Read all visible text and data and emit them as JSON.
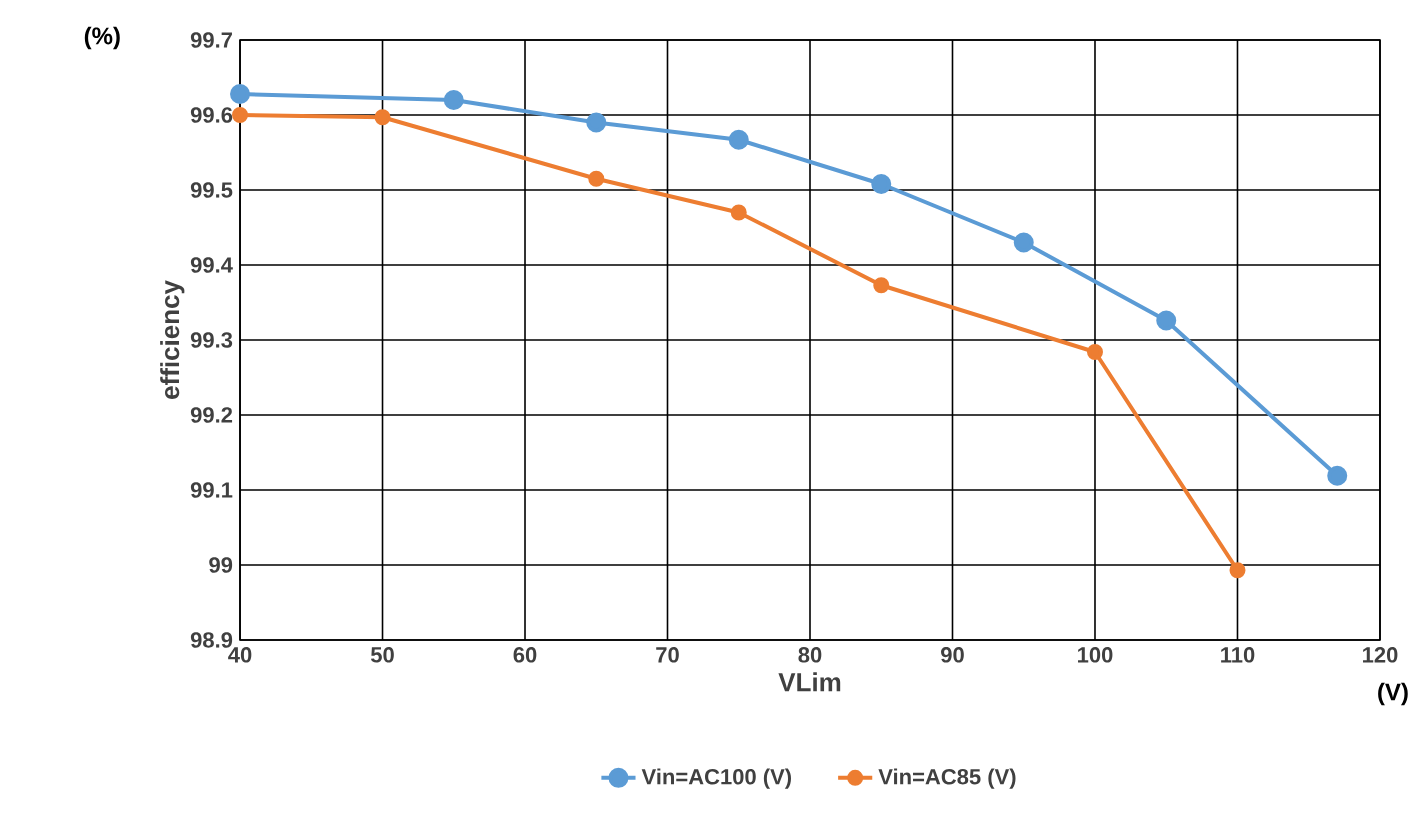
{
  "chart_data": {
    "type": "line",
    "xlabel": "VLim",
    "ylabel": "efficiency",
    "annotations": [
      "(%)",
      "(V)"
    ],
    "xlim": [
      40,
      120
    ],
    "xticks": [
      40,
      50,
      60,
      70,
      80,
      90,
      100,
      110,
      120
    ],
    "ylim": [
      98.9,
      99.7
    ],
    "yticks": [
      98.9,
      {
        "value": 99,
        "label": "99"
      },
      99.1,
      99.2,
      99.3,
      99.4,
      99.5,
      99.6,
      99.7
    ],
    "grid": true,
    "legend": "bottom",
    "marker": "circle",
    "line_style": "solid",
    "series": [
      {
        "name": "Vin=AC100 (V)",
        "color": "#5b9bd5",
        "x": [
          40,
          55,
          65,
          75,
          85,
          95,
          105,
          117
        ],
        "values": [
          99.628,
          99.62,
          99.59,
          99.567,
          99.508,
          99.43,
          99.326,
          99.119
        ]
      },
      {
        "name": "Vin=AC85 (V)",
        "color": "#ed7d31",
        "x": [
          40,
          50,
          65,
          75,
          85,
          100,
          110
        ],
        "values": [
          99.6,
          99.597,
          99.515,
          99.47,
          99.373,
          99.284,
          98.993
        ]
      }
    ]
  }
}
